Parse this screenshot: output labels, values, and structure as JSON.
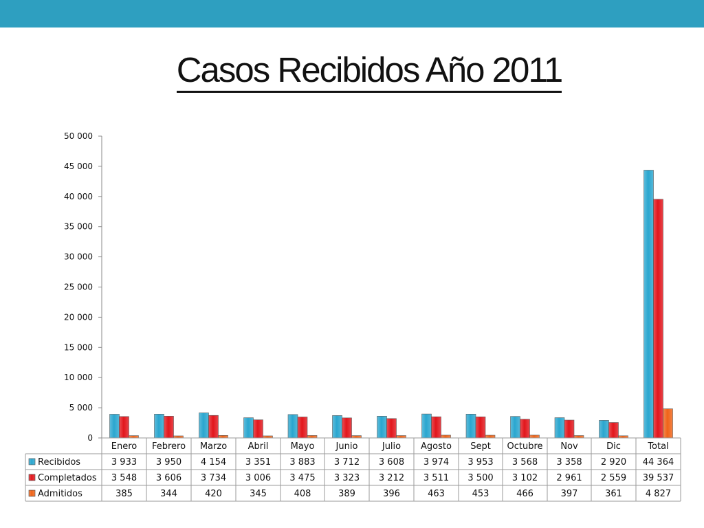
{
  "title": "Casos Recibidos Año 2011",
  "colors": {
    "header_bar": "#2e9fc0",
    "recibidos": "#2aa6cf",
    "completados": "#e2161c",
    "admitidos": "#f06418"
  },
  "chart_data": {
    "type": "bar",
    "title": "Casos Recibidos Año 2011",
    "xlabel": "",
    "ylabel": "",
    "ylim": [
      0,
      50000
    ],
    "yticks": [
      0,
      5000,
      10000,
      15000,
      20000,
      25000,
      30000,
      35000,
      40000,
      45000,
      50000
    ],
    "ytick_labels": [
      "0",
      "5 000",
      "10 000",
      "15 000",
      "20 000",
      "25 000",
      "30 000",
      "35 000",
      "40 000",
      "45 000",
      "50 000"
    ],
    "grid": false,
    "legend": "data-table",
    "categories": [
      "Enero",
      "Febrero",
      "Marzo",
      "Abril",
      "Mayo",
      "Junio",
      "Julio",
      "Agosto",
      "Sept",
      "Octubre",
      "Nov",
      "Dic",
      "Total"
    ],
    "series": [
      {
        "name": "Recibidos",
        "color": "#2aa6cf",
        "values": [
          3933,
          3950,
          4154,
          3351,
          3883,
          3712,
          3608,
          3974,
          3953,
          3568,
          3358,
          2920,
          44364
        ],
        "labels": [
          "3 933",
          "3 950",
          "4 154",
          "3 351",
          "3 883",
          "3 712",
          "3 608",
          "3 974",
          "3 953",
          "3 568",
          "3 358",
          "2 920",
          "44 364"
        ]
      },
      {
        "name": "Completados",
        "color": "#e2161c",
        "values": [
          3548,
          3606,
          3734,
          3006,
          3475,
          3323,
          3212,
          3511,
          3500,
          3102,
          2961,
          2559,
          39537
        ],
        "labels": [
          "3 548",
          "3 606",
          "3 734",
          "3 006",
          "3 475",
          "3 323",
          "3 212",
          "3 511",
          "3 500",
          "3 102",
          "2 961",
          "2 559",
          "39 537"
        ]
      },
      {
        "name": "Admitidos",
        "color": "#f06418",
        "values": [
          385,
          344,
          420,
          345,
          408,
          389,
          396,
          463,
          453,
          466,
          397,
          361,
          4827
        ],
        "labels": [
          "385",
          "344",
          "420",
          "345",
          "408",
          "389",
          "396",
          "463",
          "453",
          "466",
          "397",
          "361",
          "4 827"
        ]
      }
    ]
  }
}
